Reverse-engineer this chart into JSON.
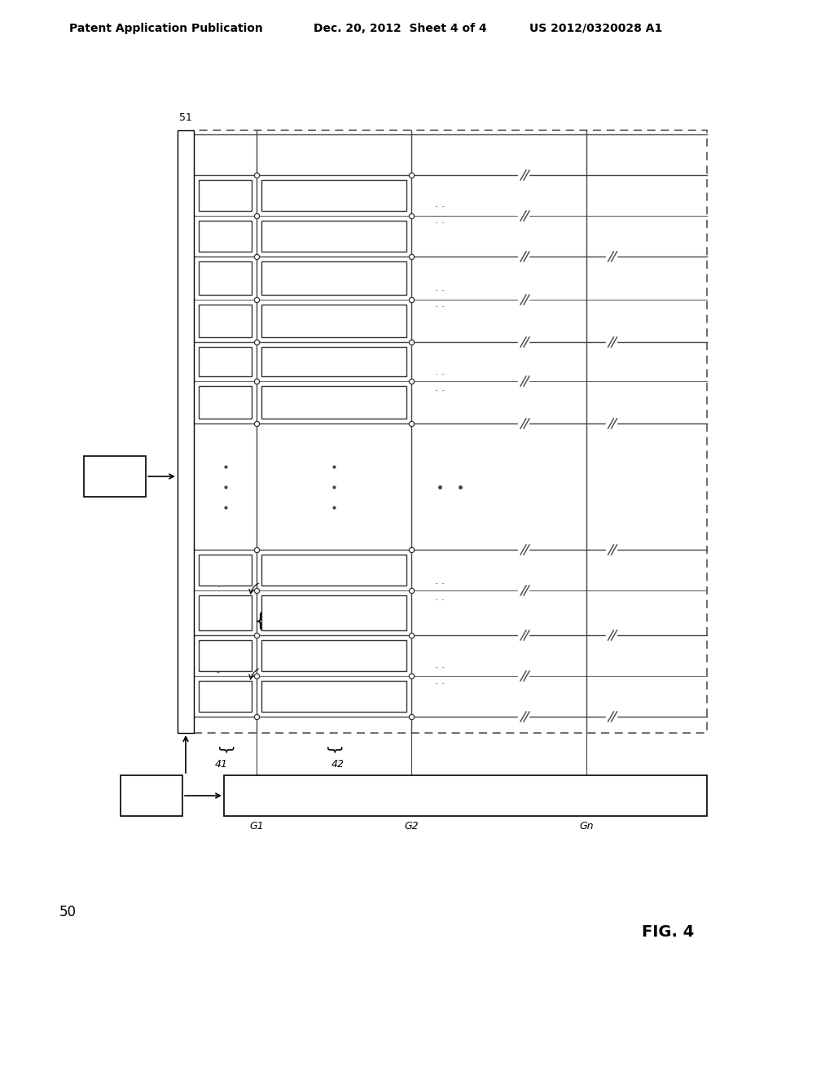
{
  "header_left": "Patent Application Publication",
  "header_mid": "Dec. 20, 2012  Sheet 4 of 4",
  "header_right": "US 2012/0320028 A1",
  "fig_label": "FIG. 4",
  "fig_number": "50",
  "bg_color": "#ffffff",
  "lc": "#000000"
}
